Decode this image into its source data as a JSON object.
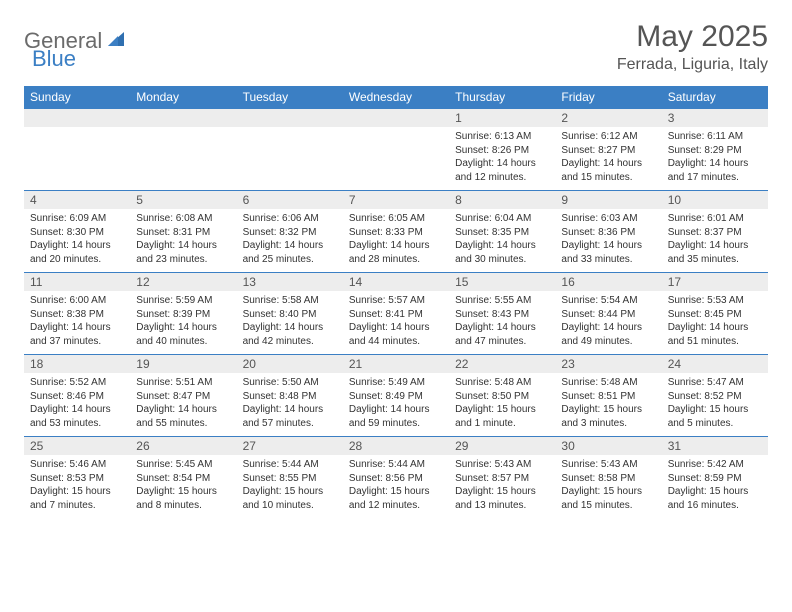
{
  "logo": {
    "text1": "General",
    "text2": "Blue"
  },
  "title": "May 2025",
  "location": "Ferrada, Liguria, Italy",
  "colors": {
    "header_bg": "#3b7fc4",
    "header_text": "#ffffff",
    "daynum_bg": "#ededed",
    "border": "#3b7fc4",
    "body_text": "#333333",
    "title_text": "#555555"
  },
  "weekdays": [
    "Sunday",
    "Monday",
    "Tuesday",
    "Wednesday",
    "Thursday",
    "Friday",
    "Saturday"
  ],
  "weeks": [
    {
      "nums": [
        "",
        "",
        "",
        "",
        "1",
        "2",
        "3"
      ],
      "details": [
        "",
        "",
        "",
        "",
        "Sunrise: 6:13 AM\nSunset: 8:26 PM\nDaylight: 14 hours and 12 minutes.",
        "Sunrise: 6:12 AM\nSunset: 8:27 PM\nDaylight: 14 hours and 15 minutes.",
        "Sunrise: 6:11 AM\nSunset: 8:29 PM\nDaylight: 14 hours and 17 minutes."
      ]
    },
    {
      "nums": [
        "4",
        "5",
        "6",
        "7",
        "8",
        "9",
        "10"
      ],
      "details": [
        "Sunrise: 6:09 AM\nSunset: 8:30 PM\nDaylight: 14 hours and 20 minutes.",
        "Sunrise: 6:08 AM\nSunset: 8:31 PM\nDaylight: 14 hours and 23 minutes.",
        "Sunrise: 6:06 AM\nSunset: 8:32 PM\nDaylight: 14 hours and 25 minutes.",
        "Sunrise: 6:05 AM\nSunset: 8:33 PM\nDaylight: 14 hours and 28 minutes.",
        "Sunrise: 6:04 AM\nSunset: 8:35 PM\nDaylight: 14 hours and 30 minutes.",
        "Sunrise: 6:03 AM\nSunset: 8:36 PM\nDaylight: 14 hours and 33 minutes.",
        "Sunrise: 6:01 AM\nSunset: 8:37 PM\nDaylight: 14 hours and 35 minutes."
      ]
    },
    {
      "nums": [
        "11",
        "12",
        "13",
        "14",
        "15",
        "16",
        "17"
      ],
      "details": [
        "Sunrise: 6:00 AM\nSunset: 8:38 PM\nDaylight: 14 hours and 37 minutes.",
        "Sunrise: 5:59 AM\nSunset: 8:39 PM\nDaylight: 14 hours and 40 minutes.",
        "Sunrise: 5:58 AM\nSunset: 8:40 PM\nDaylight: 14 hours and 42 minutes.",
        "Sunrise: 5:57 AM\nSunset: 8:41 PM\nDaylight: 14 hours and 44 minutes.",
        "Sunrise: 5:55 AM\nSunset: 8:43 PM\nDaylight: 14 hours and 47 minutes.",
        "Sunrise: 5:54 AM\nSunset: 8:44 PM\nDaylight: 14 hours and 49 minutes.",
        "Sunrise: 5:53 AM\nSunset: 8:45 PM\nDaylight: 14 hours and 51 minutes."
      ]
    },
    {
      "nums": [
        "18",
        "19",
        "20",
        "21",
        "22",
        "23",
        "24"
      ],
      "details": [
        "Sunrise: 5:52 AM\nSunset: 8:46 PM\nDaylight: 14 hours and 53 minutes.",
        "Sunrise: 5:51 AM\nSunset: 8:47 PM\nDaylight: 14 hours and 55 minutes.",
        "Sunrise: 5:50 AM\nSunset: 8:48 PM\nDaylight: 14 hours and 57 minutes.",
        "Sunrise: 5:49 AM\nSunset: 8:49 PM\nDaylight: 14 hours and 59 minutes.",
        "Sunrise: 5:48 AM\nSunset: 8:50 PM\nDaylight: 15 hours and 1 minute.",
        "Sunrise: 5:48 AM\nSunset: 8:51 PM\nDaylight: 15 hours and 3 minutes.",
        "Sunrise: 5:47 AM\nSunset: 8:52 PM\nDaylight: 15 hours and 5 minutes."
      ]
    },
    {
      "nums": [
        "25",
        "26",
        "27",
        "28",
        "29",
        "30",
        "31"
      ],
      "details": [
        "Sunrise: 5:46 AM\nSunset: 8:53 PM\nDaylight: 15 hours and 7 minutes.",
        "Sunrise: 5:45 AM\nSunset: 8:54 PM\nDaylight: 15 hours and 8 minutes.",
        "Sunrise: 5:44 AM\nSunset: 8:55 PM\nDaylight: 15 hours and 10 minutes.",
        "Sunrise: 5:44 AM\nSunset: 8:56 PM\nDaylight: 15 hours and 12 minutes.",
        "Sunrise: 5:43 AM\nSunset: 8:57 PM\nDaylight: 15 hours and 13 minutes.",
        "Sunrise: 5:43 AM\nSunset: 8:58 PM\nDaylight: 15 hours and 15 minutes.",
        "Sunrise: 5:42 AM\nSunset: 8:59 PM\nDaylight: 15 hours and 16 minutes."
      ]
    }
  ]
}
